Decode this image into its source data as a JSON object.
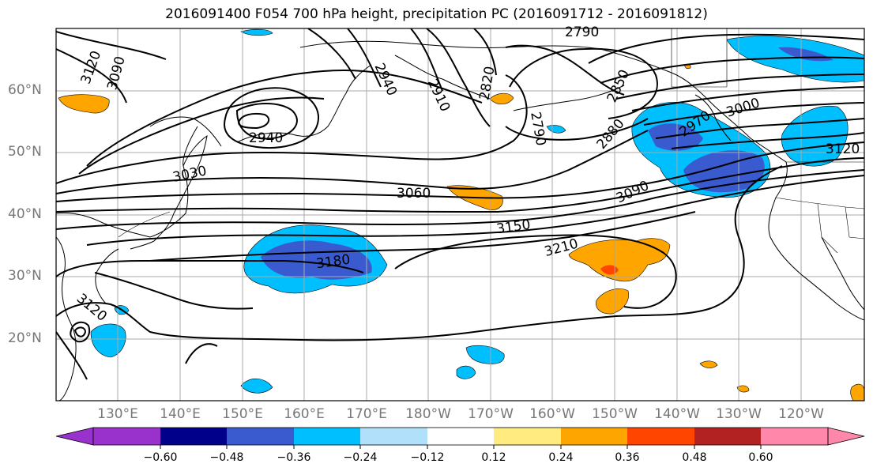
{
  "title": "2016091400 F054 700 hPa height, precipitation PC (2016091712 - 2016091812)",
  "lat_labels": [
    "60°N",
    "50°N",
    "40°N",
    "30°N",
    "20°N"
  ],
  "lon_labels": [
    "130°E",
    "140°E",
    "150°E",
    "160°E",
    "170°E",
    "180°W",
    "170°W",
    "160°W",
    "150°W",
    "140°W",
    "130°W",
    "120°W"
  ],
  "contour_labels": [
    "3120",
    "3090",
    "2940",
    "2910",
    "2820",
    "2790",
    "2790",
    "2850",
    "2880",
    "2970",
    "3000",
    "3120",
    "2940",
    "3030",
    "3060",
    "3090",
    "3150",
    "3210",
    "3180",
    "3120"
  ],
  "colorbar": {
    "ticks": [
      "−0.60",
      "−0.48",
      "−0.36",
      "−0.24",
      "−0.12",
      "0.12",
      "0.24",
      "0.36",
      "0.48",
      "0.60"
    ],
    "colors": [
      "#9932cc",
      "#00008b",
      "#3a5bd0",
      "#00bfff",
      "#b0e0fa",
      "#ffffff",
      "#ffeb80",
      "#ffa500",
      "#ff4500",
      "#b22222",
      "#ff88aa"
    ]
  }
}
